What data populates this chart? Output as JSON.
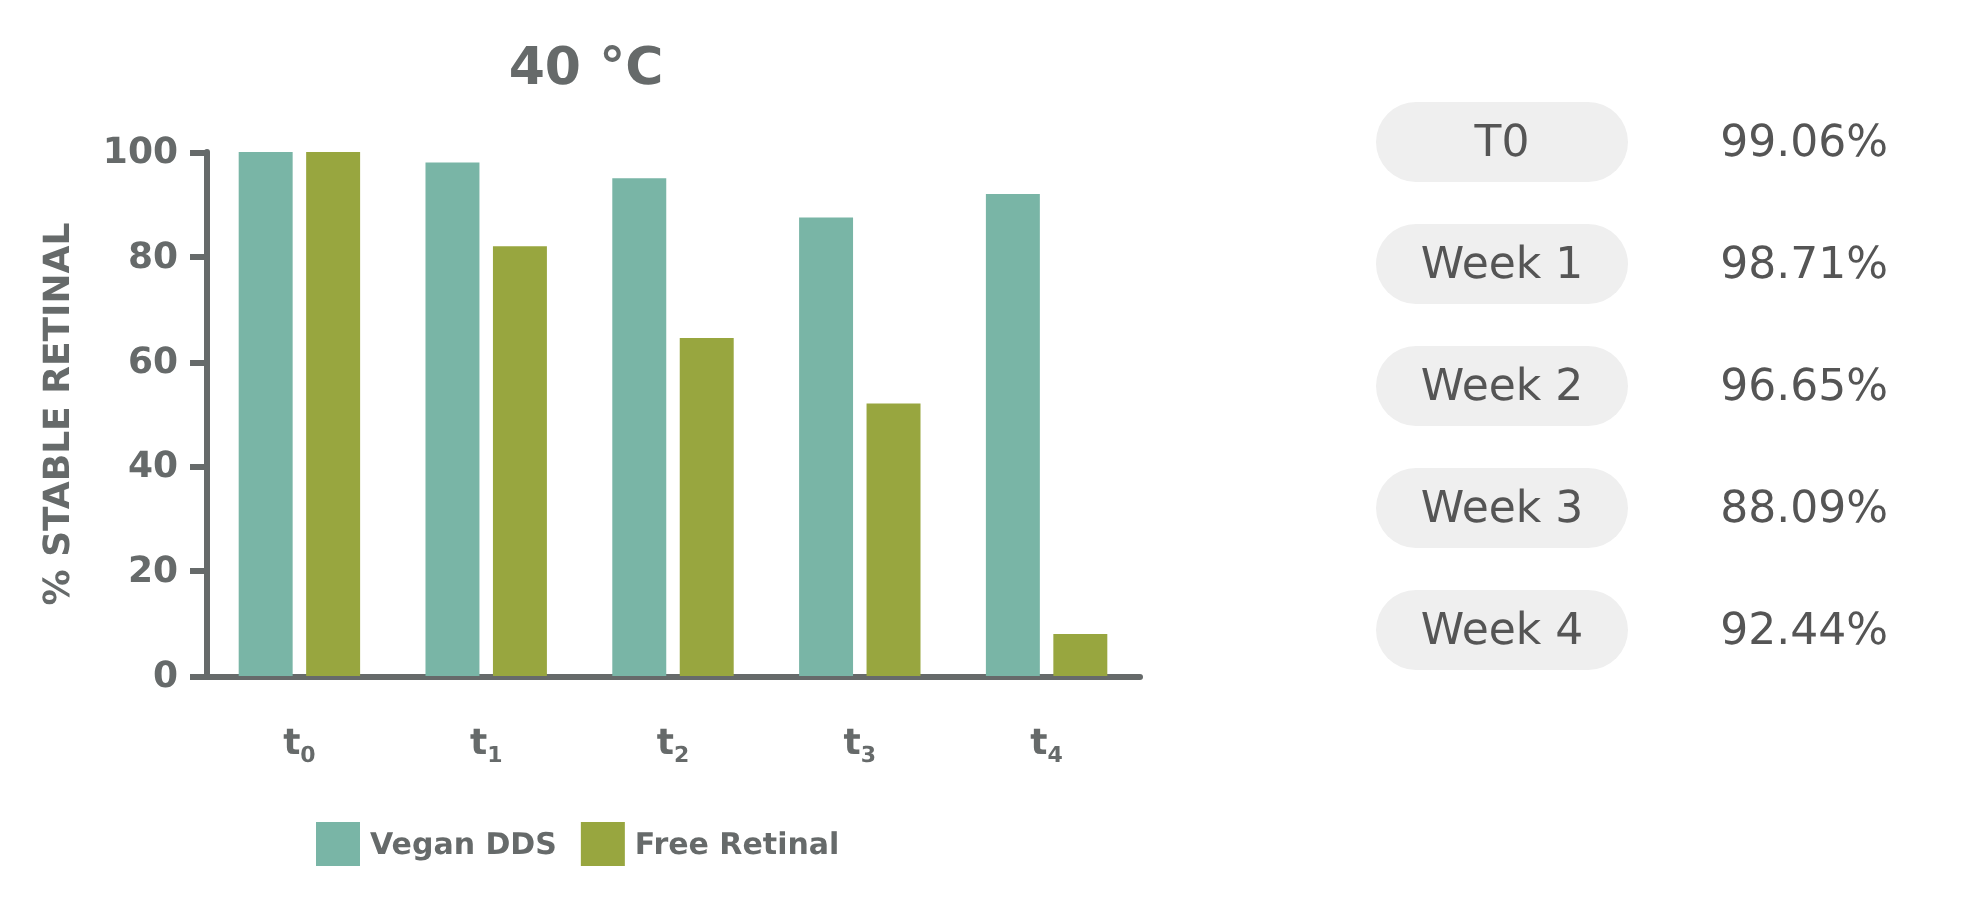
{
  "chart_data": [
    {
      "type": "bar",
      "title": "40 °C",
      "ylabel": "% STABLE RETINAL",
      "categories": [
        "t$_{0}$",
        "t$_{1}$",
        "t$_{2}$",
        "t$_{3}$",
        "t$_{4}$"
      ],
      "series": [
        {
          "name": "Vegan DDS",
          "color": "#79b5a6",
          "values": [
            100,
            98,
            95,
            87.5,
            92
          ]
        },
        {
          "name": "Free Retinal",
          "color": "#98a63f",
          "values": [
            100,
            82,
            64.5,
            52,
            8
          ]
        }
      ],
      "ylim": [
        0,
        100
      ],
      "yticks": [
        0,
        20,
        40,
        60,
        80,
        100
      ],
      "grid": false,
      "legend": "bottom left"
    },
    {
      "type": "other",
      "categories": [
        "T0",
        "Week 1",
        "Week 2",
        "Week 3",
        "Week 4"
      ],
      "value_labels": [
        "99.06%",
        "98.71%",
        "96.65%",
        "88.09%",
        "92.44%"
      ]
    }
  ]
}
